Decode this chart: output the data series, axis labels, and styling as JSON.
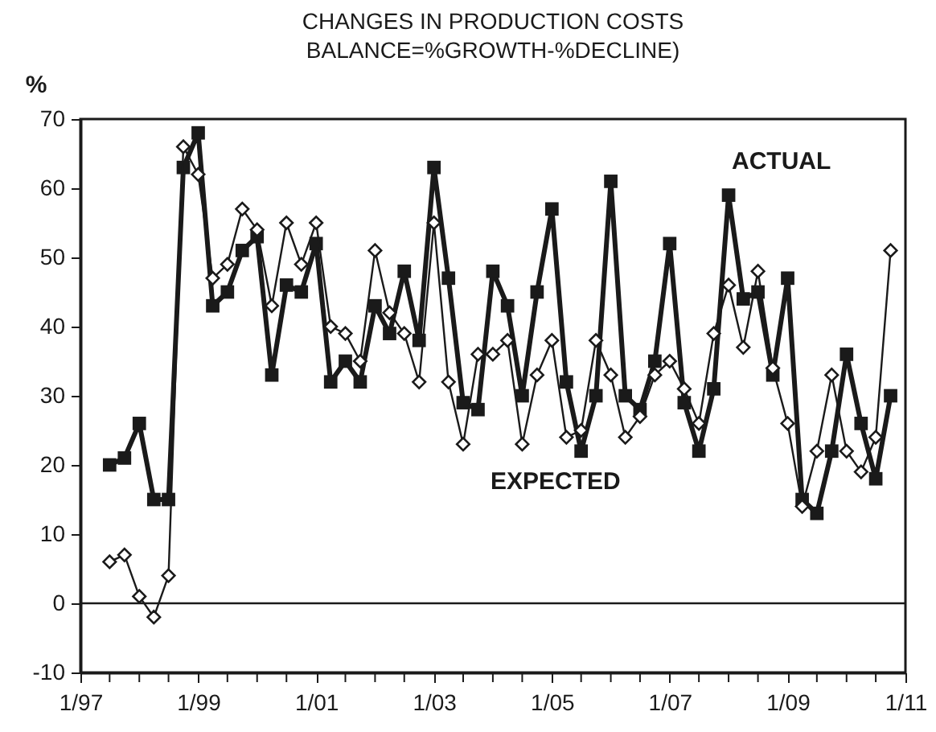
{
  "chart_data": {
    "type": "line",
    "title": "CHANGES IN PRODUCTION COSTS\nBALANCE=%GROWTH-%DECLINE)",
    "ylabel": "%",
    "x": [
      "1997-07",
      "1997-10",
      "1998-01",
      "1998-04",
      "1998-07",
      "1998-10",
      "1999-01",
      "1999-04",
      "1999-07",
      "1999-10",
      "2000-01",
      "2000-04",
      "2000-07",
      "2000-10",
      "2001-01",
      "2001-04",
      "2001-07",
      "2001-10",
      "2002-01",
      "2002-04",
      "2002-07",
      "2002-10",
      "2003-01",
      "2003-04",
      "2003-07",
      "2003-10",
      "2004-01",
      "2004-04",
      "2004-07",
      "2004-10",
      "2005-01",
      "2005-04",
      "2005-07",
      "2005-10",
      "2006-01",
      "2006-04",
      "2006-07",
      "2006-10",
      "2007-01",
      "2007-04",
      "2007-07",
      "2007-10",
      "2008-01",
      "2008-04",
      "2008-07",
      "2008-10",
      "2009-01",
      "2009-04",
      "2009-07",
      "2009-10",
      "2010-01",
      "2010-04",
      "2010-07",
      "2010-10"
    ],
    "series": [
      {
        "name": "ACTUAL",
        "color": "#1a1a1a",
        "marker": "square",
        "values": [
          20,
          21,
          26,
          15,
          15,
          63,
          68,
          43,
          45,
          51,
          53,
          33,
          46,
          45,
          52,
          32,
          35,
          32,
          43,
          39,
          48,
          38,
          63,
          47,
          29,
          28,
          48,
          43,
          30,
          45,
          57,
          32,
          22,
          30,
          61,
          30,
          28,
          35,
          52,
          29,
          22,
          31,
          59,
          44,
          45,
          33,
          47,
          15,
          13,
          22,
          36,
          26,
          18,
          30
        ]
      },
      {
        "name": "EXPECTED",
        "color": "#1a1a1a",
        "marker": "diamond",
        "values": [
          6,
          7,
          1,
          -2,
          4,
          66,
          62,
          47,
          49,
          57,
          54,
          43,
          55,
          49,
          55,
          40,
          39,
          35,
          51,
          42,
          39,
          32,
          55,
          32,
          23,
          36,
          36,
          38,
          23,
          33,
          38,
          24,
          25,
          38,
          33,
          24,
          27,
          33,
          35,
          31,
          26,
          39,
          46,
          37,
          48,
          34,
          26,
          14,
          22,
          33,
          22,
          19,
          24,
          51
        ]
      }
    ],
    "xlim": [
      "1997-01",
      "2011-01"
    ],
    "xticks": [
      {
        "value": "1997-01",
        "label": "1/97"
      },
      {
        "value": "1997-07",
        "label": null
      },
      {
        "value": "1998-01",
        "label": null
      },
      {
        "value": "1998-07",
        "label": null
      },
      {
        "value": "1999-01",
        "label": "1/99"
      },
      {
        "value": "1999-07",
        "label": null
      },
      {
        "value": "2000-01",
        "label": null
      },
      {
        "value": "2000-07",
        "label": null
      },
      {
        "value": "2001-01",
        "label": "1/01"
      },
      {
        "value": "2001-07",
        "label": null
      },
      {
        "value": "2002-01",
        "label": null
      },
      {
        "value": "2002-07",
        "label": null
      },
      {
        "value": "2003-01",
        "label": "1/03"
      },
      {
        "value": "2003-07",
        "label": null
      },
      {
        "value": "2004-01",
        "label": null
      },
      {
        "value": "2004-07",
        "label": null
      },
      {
        "value": "2005-01",
        "label": "1/05"
      },
      {
        "value": "2005-07",
        "label": null
      },
      {
        "value": "2006-01",
        "label": null
      },
      {
        "value": "2006-07",
        "label": null
      },
      {
        "value": "2007-01",
        "label": "1/07"
      },
      {
        "value": "2007-07",
        "label": null
      },
      {
        "value": "2008-01",
        "label": null
      },
      {
        "value": "2008-07",
        "label": null
      },
      {
        "value": "2009-01",
        "label": "1/09"
      },
      {
        "value": "2009-07",
        "label": null
      },
      {
        "value": "2010-01",
        "label": null
      },
      {
        "value": "2010-07",
        "label": null
      },
      {
        "value": "2011-01",
        "label": "1/11"
      }
    ],
    "ylim": [
      -10,
      70
    ],
    "yticks": [
      -10,
      0,
      10,
      20,
      30,
      40,
      50,
      60,
      70
    ],
    "ref_lines": [
      {
        "axis": "y",
        "value": 0,
        "color": "#1a1a1a"
      }
    ],
    "grid": false
  }
}
